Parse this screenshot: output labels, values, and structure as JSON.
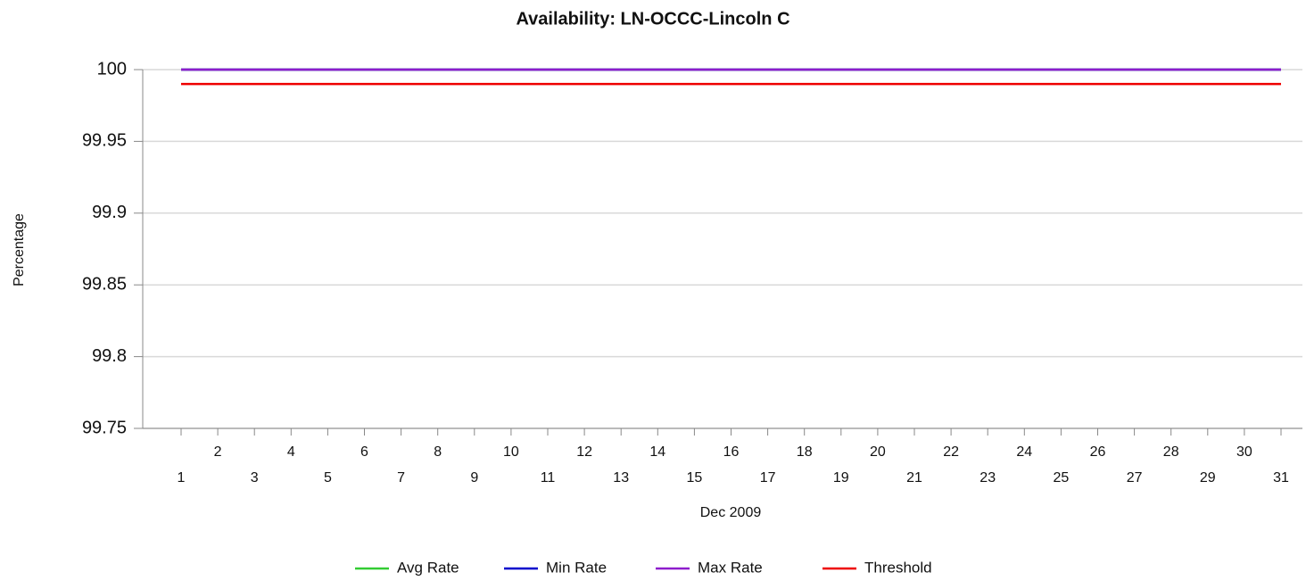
{
  "chart_data": {
    "type": "line",
    "title": "Availability: LN-OCCC-Lincoln C",
    "x_label": "Dec 2009",
    "y_label": "Percentage",
    "categories": [
      "1",
      "2",
      "3",
      "4",
      "5",
      "6",
      "7",
      "8",
      "9",
      "10",
      "11",
      "12",
      "13",
      "14",
      "15",
      "16",
      "17",
      "18",
      "19",
      "20",
      "21",
      "22",
      "23",
      "24",
      "25",
      "26",
      "27",
      "28",
      "29",
      "30",
      "31"
    ],
    "series": [
      {
        "name": "Avg Rate",
        "color": "#33cc33",
        "values": [
          100,
          100,
          100,
          100,
          100,
          100,
          100,
          100,
          100,
          100,
          100,
          100,
          100,
          100,
          100,
          100,
          100,
          100,
          100,
          100,
          100,
          100,
          100,
          100,
          100,
          100,
          100,
          100,
          100,
          100,
          100
        ]
      },
      {
        "name": "Min Rate",
        "color": "#0000cc",
        "values": [
          100,
          100,
          100,
          100,
          100,
          100,
          100,
          100,
          100,
          100,
          100,
          100,
          100,
          100,
          100,
          100,
          100,
          100,
          100,
          100,
          100,
          100,
          100,
          100,
          100,
          100,
          100,
          100,
          100,
          100,
          100
        ]
      },
      {
        "name": "Max Rate",
        "color": "#8e1ccc",
        "values": [
          100,
          100,
          100,
          100,
          100,
          100,
          100,
          100,
          100,
          100,
          100,
          100,
          100,
          100,
          100,
          100,
          100,
          100,
          100,
          100,
          100,
          100,
          100,
          100,
          100,
          100,
          100,
          100,
          100,
          100,
          100
        ]
      },
      {
        "name": "Threshold",
        "color": "#ee0000",
        "values": [
          99.99,
          99.99,
          99.99,
          99.99,
          99.99,
          99.99,
          99.99,
          99.99,
          99.99,
          99.99,
          99.99,
          99.99,
          99.99,
          99.99,
          99.99,
          99.99,
          99.99,
          99.99,
          99.99,
          99.99,
          99.99,
          99.99,
          99.99,
          99.99,
          99.99,
          99.99,
          99.99,
          99.99,
          99.99,
          99.99,
          99.99
        ]
      }
    ],
    "ylim": [
      99.75,
      100
    ],
    "yticks": [
      99.75,
      99.8,
      99.85,
      99.9,
      99.95,
      100
    ],
    "grid": true
  }
}
